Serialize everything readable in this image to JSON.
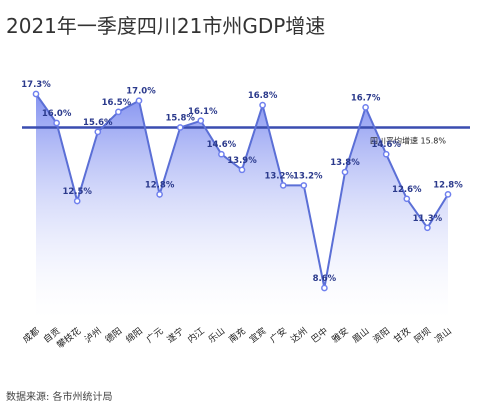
{
  "title": "2021年一季度四川21市州GDP增速",
  "source": "数据来源: 各市州统计局",
  "colors": {
    "line": "#5b6fd6",
    "avg": "#3a4db0",
    "fill_top": "#6f80ee",
    "fill_bottom": "#ffffff",
    "dot": "#6f80ee"
  },
  "chart_data": {
    "type": "area",
    "categories": [
      "成都",
      "自贡",
      "攀枝花",
      "泸州",
      "德阳",
      "绵阳",
      "广元",
      "遂宁",
      "内江",
      "乐山",
      "南充",
      "宜宾",
      "广安",
      "达州",
      "巴中",
      "雅安",
      "眉山",
      "资阳",
      "甘孜",
      "阿坝",
      "凉山"
    ],
    "values": [
      17.3,
      16.0,
      12.5,
      15.6,
      16.5,
      17.0,
      12.8,
      15.8,
      16.1,
      14.6,
      13.9,
      16.8,
      13.2,
      13.2,
      8.6,
      13.8,
      16.7,
      14.6,
      12.6,
      11.3,
      12.8
    ],
    "data_labels": [
      "17.3%",
      "16.0%",
      "12.5%",
      "15.6%",
      "16.5%",
      "17.0%",
      "12.8%",
      "15.8%",
      "16.1%",
      "14.6%",
      "13.9%",
      "16.8%",
      "13.2%",
      "13.2%",
      "8.6%",
      "13.8%",
      "16.7%",
      "14.6%",
      "12.6%",
      "11.3%",
      "12.8%"
    ],
    "reference_line": {
      "value": 15.8,
      "label": "四川平均增速 15.8%"
    }
  }
}
